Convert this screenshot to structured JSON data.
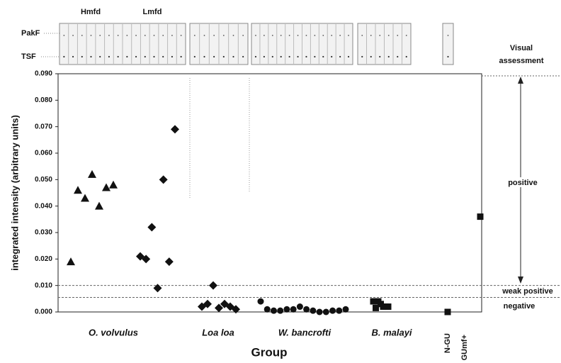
{
  "chart_data": {
    "type": "strip",
    "strip_labels": [
      "Hmfd",
      "Lmfd"
    ],
    "strip_rows": [
      "PakF",
      "TSF"
    ],
    "y_label": "integrated intensity (arbitrary units)",
    "x_label": "Group",
    "ylim": [
      0,
      0.09
    ],
    "yticks": [
      {
        "value": 0,
        "label": "0.000"
      },
      {
        "value": 0.01,
        "label": "0.010"
      },
      {
        "value": 0.02,
        "label": "0.020"
      },
      {
        "value": 0.03,
        "label": "0.030"
      },
      {
        "value": 0.04,
        "label": "0.040"
      },
      {
        "value": 0.05,
        "label": "0.050"
      },
      {
        "value": 0.06,
        "label": "0.060"
      },
      {
        "value": 0.07,
        "label": "0.070"
      },
      {
        "value": 0.08,
        "label": "0.080"
      },
      {
        "value": 0.09,
        "label": "0.090"
      }
    ],
    "thresholds": [
      0.01,
      0.0055
    ],
    "annotations": [
      "Visual",
      "assessment",
      "positive",
      "weak positive",
      "negative"
    ],
    "groups": [
      {
        "label": "O. volvulus",
        "series": [
          {
            "name": "Hmfd",
            "marker": "triangle",
            "values": [
              0.019,
              0.046,
              0.043,
              0.052,
              0.04,
              0.047,
              0.048
            ]
          },
          {
            "name": "Lmfd",
            "marker": "diamond",
            "values": [
              0.021,
              0.02,
              0.032,
              0.009,
              0.05,
              0.019,
              0.069
            ]
          }
        ]
      },
      {
        "label": "Loa loa",
        "series": [
          {
            "marker": "diamond",
            "values": [
              0.002,
              0.003,
              0.01,
              0.0015,
              0.003,
              0.002,
              0.001
            ]
          }
        ]
      },
      {
        "label": "W. bancrofti",
        "series": [
          {
            "marker": "circle",
            "values": [
              0.004,
              0.001,
              0.0005,
              0.0005,
              0.001,
              0.001,
              0.002,
              0.001,
              0.0005,
              0,
              0,
              0.0005,
              0.0005,
              0.001
            ]
          }
        ]
      },
      {
        "label": "B. malayi",
        "series": [
          {
            "marker": "square",
            "values": [
              0.004,
              0.0015,
              0.004,
              0.003,
              0.002,
              0.002,
              0.002
            ]
          }
        ]
      },
      {
        "label": "N-GU",
        "series": [
          {
            "marker": "square",
            "values": [
              0
            ]
          }
        ]
      },
      {
        "label": "GUmf+",
        "series": [
          {
            "marker": "square",
            "values": [
              0.036
            ]
          }
        ]
      }
    ],
    "color": "#111111"
  }
}
